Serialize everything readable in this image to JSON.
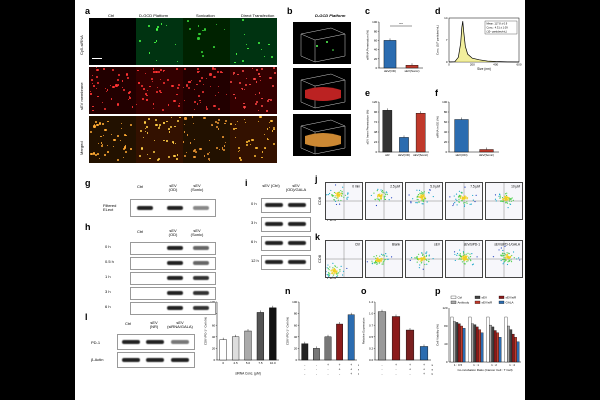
{
  "panels": {
    "a": {
      "label": "a",
      "cols": [
        "Ctrl",
        "D-GCD Platform",
        "Sonication",
        "Direct Transfection"
      ],
      "rows": [
        "Cy5-siRNA",
        "sEV membrane",
        "Merged"
      ],
      "scale": "2 μm"
    },
    "b": {
      "label": "b",
      "title": "D-GCD Platform"
    },
    "c": {
      "label": "c",
      "ylabel": "siRNA Penetration (%)",
      "sig": "***"
    },
    "d": {
      "label": "d",
      "xlabel": "Size (nm)",
      "ylabel": "Conc. (10⁸ particles/mL)",
      "legend": [
        "Mean: 117.8 ± 0.9",
        "Conc.: 4.31 ± 1.09",
        "(10⁸ particles/mL)"
      ]
    },
    "e": {
      "label": "e",
      "ylabel": "sEV Inner Penetration (%)"
    },
    "f": {
      "label": "f",
      "ylabel": "siRNA in EE (%)"
    },
    "g": {
      "label": "g",
      "cols": [
        "Ctrl",
        "sEV (OD)",
        "sEV (Sonic)"
      ],
      "row": "Filtered ELect"
    },
    "h": {
      "label": "h",
      "cols": [
        "Ctrl",
        "sEV (OD)",
        "sEV (Sonic)"
      ],
      "rows": [
        "0 h",
        "0.5 h",
        "1 h",
        "3 h",
        "6 h"
      ]
    },
    "i": {
      "label": "i",
      "cols": [
        "sEV (Ctrl)",
        "sEV (OD)/GALA"
      ],
      "rows": [
        "0 h",
        "3 h",
        "6 h",
        "12 h"
      ]
    },
    "j": {
      "label": "j",
      "tags": [
        "0 min",
        "2.5 μM",
        "5.0 μM",
        "7.5 μM",
        "10 μM"
      ],
      "xlabel": "PD-1",
      "ylabel": "CD8"
    },
    "k": {
      "label": "k",
      "tags": [
        "Ctrl",
        "Blank",
        "sEV",
        "sEV/siPD-1",
        "sEV/siPD-1/GALA"
      ],
      "xlabel": "PD-1",
      "ylabel": "CD8"
    },
    "l": {
      "label": "l",
      "cols": [
        "Ctrl",
        "sEV (NR)",
        "sEV (siRNA/GALA)"
      ],
      "rows": [
        "PD-1",
        "β-Actin"
      ]
    },
    "m": {
      "label": "m",
      "ylabel": "CD8⁺/PD-1⁺ Cell (%)"
    },
    "n": {
      "label": "n",
      "ylabel": "CD8⁺/PD-1⁺ Cell (%)",
      "rows": [
        "sEV",
        "siR",
        "GALA"
      ]
    },
    "o": {
      "label": "o",
      "ylabel": "Relative Expression",
      "rows": [
        "sEV",
        "siR",
        "GALA"
      ]
    },
    "p": {
      "label": "p",
      "ylabel": "Cell Viability (%)",
      "xlabel": "Co-incubation Ratio (Cancer Cell : T Cell)",
      "legend": [
        "Ctrl",
        "sEV",
        "sEV/siR",
        "Antibody",
        "sEV/siR",
        "GALA"
      ]
    }
  },
  "chart_data": [
    {
      "type": "bar",
      "panel": "c",
      "categories": [
        "sEV(OD)",
        "sEV(Sonic)"
      ],
      "values": [
        60,
        6
      ],
      "ylim": [
        0,
        100
      ],
      "ylabel": "siRNA Penetration (%)",
      "colors": [
        "#2b6cb0",
        "#c0392b"
      ]
    },
    {
      "type": "line",
      "panel": "d",
      "x": [
        0,
        50,
        80,
        100,
        110,
        118,
        125,
        140,
        160,
        200,
        260,
        330,
        400,
        500,
        600
      ],
      "y": [
        0,
        0.1,
        1.5,
        6,
        11,
        13,
        10,
        5,
        2.5,
        1.2,
        0.7,
        0.3,
        0.15,
        0.05,
        0
      ],
      "xlim": [
        0,
        600
      ],
      "ylim": [
        0,
        14
      ],
      "xlabel": "Size (nm)",
      "ylabel": "Conc. (10⁸ particles/mL)"
    },
    {
      "type": "bar",
      "panel": "e",
      "categories": [
        "siR",
        "sEV(OD)",
        "sEV(Sonic)"
      ],
      "values": [
        100,
        35,
        93
      ],
      "ylim": [
        0,
        120
      ],
      "ylabel": "sEV Inner Penetration (%)",
      "colors": [
        "#333333",
        "#2b6cb0",
        "#c0392b"
      ]
    },
    {
      "type": "bar",
      "panel": "f",
      "categories": [
        "sEV(OD)",
        "sEV(Sonic)"
      ],
      "values": [
        65,
        5
      ],
      "ylim": [
        0,
        100
      ],
      "ylabel": "siRNA in EE (%)",
      "colors": [
        "#2b6cb0",
        "#c0392b"
      ]
    },
    {
      "type": "bar",
      "panel": "m",
      "categories": [
        "0",
        "2.5",
        "5.0",
        "7.5",
        "10.0"
      ],
      "values": [
        35,
        40,
        50,
        82,
        90
      ],
      "ylim": [
        0,
        100
      ],
      "xlabel": "siRNA Conc. (μM)",
      "ylabel": "CD8⁺/PD-1⁺ Cell (%)",
      "colors": [
        "#ffffff",
        "#dddddd",
        "#aaaaaa",
        "#555555",
        "#111111"
      ]
    },
    {
      "type": "bar",
      "panel": "n",
      "categories": [
        "Ctrl",
        "Blank",
        "sEV",
        "siR",
        "GALA"
      ],
      "values": [
        28,
        20,
        40,
        62,
        78
      ],
      "ylim": [
        0,
        100
      ],
      "ylabel": "CD8⁺/PD-1⁺ Cell (%)",
      "colors": [
        "#222222",
        "#777777",
        "#777777",
        "#8b1a1a",
        "#2b6cb0"
      ]
    },
    {
      "type": "bar",
      "panel": "o",
      "categories": [
        "Ctrl",
        "sEV",
        "siR",
        "GALA"
      ],
      "values": [
        1.0,
        0.9,
        0.62,
        0.28
      ],
      "ylim": [
        0,
        1.2
      ],
      "ylabel": "Relative Expression",
      "colors": [
        "#999999",
        "#8b1a1a",
        "#7a1f1f",
        "#2b6cb0"
      ]
    },
    {
      "type": "bar",
      "panel": "p",
      "categories": [
        "1 : 0.5",
        "1 : 1",
        "1 : 2",
        "1 : 4"
      ],
      "ylim": [
        0,
        120
      ],
      "xlabel": "Co-incubation Ratio (Cancer Cell : T Cell)",
      "ylabel": "Cell Viability (%)",
      "series": [
        {
          "name": "Ctrl",
          "values": [
            100,
            100,
            100,
            100
          ],
          "color": "#ffffff"
        },
        {
          "name": "Antibody",
          "values": [
            90,
            85,
            82,
            80
          ],
          "color": "#aaaaaa"
        },
        {
          "name": "sEV",
          "values": [
            88,
            83,
            78,
            72
          ],
          "color": "#444444"
        },
        {
          "name": "sEV/siR",
          "values": [
            85,
            78,
            70,
            62
          ],
          "color": "#8b1a1a"
        },
        {
          "name": "sEV/siR",
          "values": [
            80,
            72,
            65,
            55
          ],
          "color": "#c0392b"
        },
        {
          "name": "GALA",
          "values": [
            75,
            65,
            55,
            45
          ],
          "color": "#2b6cb0"
        }
      ]
    }
  ]
}
